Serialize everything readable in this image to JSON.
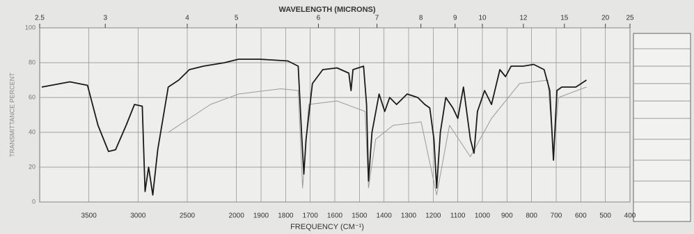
{
  "chart_data": {
    "type": "line",
    "title": "WAVELENGTH (MICRONS)",
    "x_label": "FREQUENCY (CM⁻¹)",
    "y_label": "TRANSMITTANCE PERCENT",
    "xlim": [
      4000,
      400
    ],
    "x_scale_change": 2000,
    "xticks": [
      3500,
      3000,
      2500,
      2000,
      1900,
      1800,
      1700,
      1600,
      1500,
      1400,
      1300,
      1200,
      1100,
      1000,
      900,
      800,
      700,
      600,
      500,
      400
    ],
    "x2ticks": [
      2.5,
      3,
      4,
      5,
      6,
      7,
      8,
      9,
      10,
      12,
      15,
      20,
      25
    ],
    "ylim": [
      0,
      100
    ],
    "yticks": [
      0,
      20,
      40,
      60,
      80,
      100
    ],
    "grid": true,
    "series": [
      {
        "color": "#1a1a1a",
        "x": [
          3979,
          3693,
          3514,
          3407,
          3300,
          3229,
          3121,
          3036,
          2957,
          2929,
          2893,
          2850,
          2800,
          2693,
          2586,
          2479,
          2336,
          2121,
          1991,
          1906,
          1791,
          1749,
          1734,
          1726,
          1717,
          1691,
          1649,
          1591,
          1543,
          1534,
          1526,
          1483,
          1471,
          1463,
          1449,
          1420,
          1397,
          1377,
          1349,
          1306,
          1263,
          1234,
          1214,
          1197,
          1186,
          1171,
          1149,
          1120,
          1100,
          1077,
          1049,
          1034,
          1020,
          991,
          963,
          929,
          906,
          883,
          834,
          791,
          749,
          726,
          711,
          697,
          677,
          620,
          577
        ],
        "values": [
          66,
          69,
          67,
          44,
          29,
          30,
          44,
          56,
          55,
          6,
          20,
          4,
          30,
          66,
          70,
          76,
          78,
          80,
          82,
          82,
          81,
          78,
          36,
          16,
          36,
          68,
          76,
          77,
          74,
          64,
          76,
          78,
          56,
          12,
          40,
          62,
          52,
          60,
          56,
          62,
          60,
          56,
          54,
          36,
          8,
          40,
          60,
          54,
          48,
          66,
          36,
          28,
          52,
          64,
          56,
          76,
          72,
          78,
          78,
          79,
          76,
          64,
          24,
          64,
          66,
          66,
          70
        ]
      },
      {
        "color": "#9a9a9a",
        "x": [
          2693,
          2479,
          2264,
          1991,
          1820,
          1749,
          1731,
          1706,
          1591,
          1477,
          1463,
          1434,
          1363,
          1249,
          1186,
          1134,
          1049,
          963,
          849,
          734,
          711,
          691,
          577
        ],
        "values": [
          40,
          48,
          56,
          62,
          65,
          64,
          8,
          56,
          58,
          52,
          8,
          36,
          44,
          46,
          4,
          44,
          26,
          48,
          68,
          70,
          28,
          60,
          66
        ]
      }
    ]
  }
}
